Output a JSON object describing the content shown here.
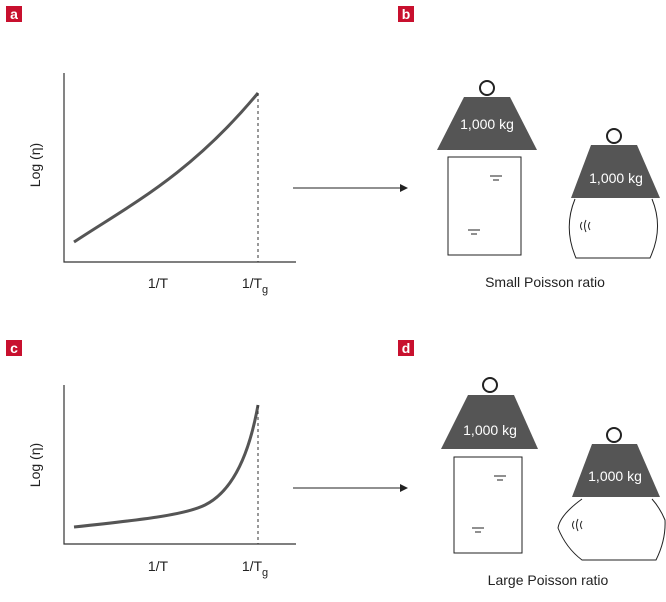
{
  "panels": [
    {
      "label": "a",
      "y_label": "Log (η)",
      "x_labels": [
        {
          "main": "1/T"
        },
        {
          "main": "1/T",
          "sub": "g"
        }
      ]
    },
    {
      "label": "b",
      "weights": [
        "1,000 kg",
        "1,000 kg"
      ],
      "caption": "Small Poisson ratio"
    },
    {
      "label": "c",
      "y_label": "Log (η)",
      "x_labels": [
        {
          "main": "1/T"
        },
        {
          "main": "1/T",
          "sub": "g"
        }
      ]
    },
    {
      "label": "d",
      "weights": [
        "1,000 kg",
        "1,000 kg"
      ],
      "caption": "Large Poisson ratio"
    }
  ]
}
